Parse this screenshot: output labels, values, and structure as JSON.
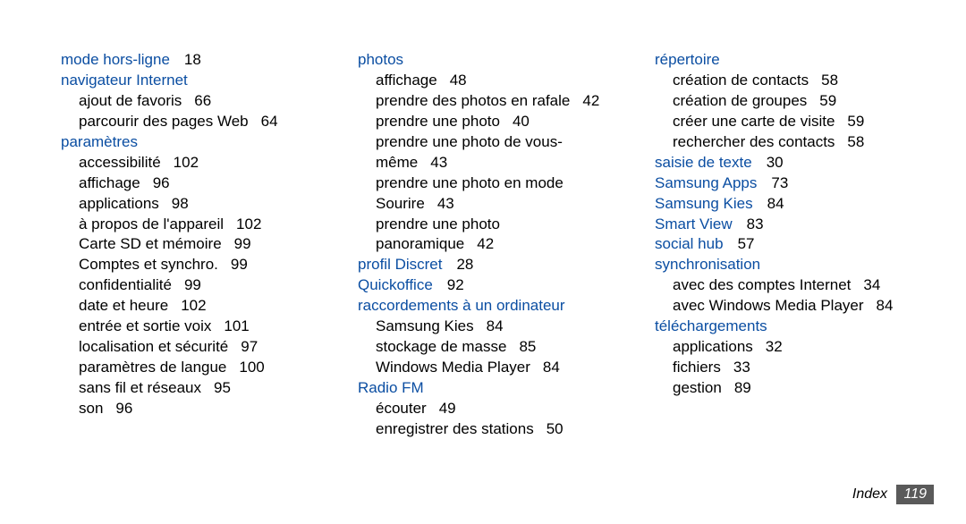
{
  "columns": [
    [
      {
        "heading": "mode hors-ligne",
        "page": "18"
      },
      {
        "heading": "navigateur Internet",
        "subs": [
          {
            "label": "ajout de favoris",
            "page": "66"
          },
          {
            "label": "parcourir des pages Web",
            "page": "64"
          }
        ]
      },
      {
        "heading": "paramètres",
        "subs": [
          {
            "label": "accessibilité",
            "page": "102"
          },
          {
            "label": "affichage",
            "page": "96"
          },
          {
            "label": "applications",
            "page": "98"
          },
          {
            "label": "à propos de l'appareil",
            "page": "102"
          },
          {
            "label": "Carte SD et mémoire",
            "page": "99"
          },
          {
            "label": "Comptes et synchro.",
            "page": "99"
          },
          {
            "label": "confidentialité",
            "page": "99"
          },
          {
            "label": "date et heure",
            "page": "102"
          },
          {
            "label": "entrée et sortie voix",
            "page": "101"
          },
          {
            "label": "localisation et sécurité",
            "page": "97"
          },
          {
            "label": "paramètres de langue",
            "page": "100"
          },
          {
            "label": "sans fil et réseaux",
            "page": "95"
          },
          {
            "label": "son",
            "page": "96"
          }
        ]
      }
    ],
    [
      {
        "heading": "photos",
        "subs": [
          {
            "label": "affichage",
            "page": "48"
          },
          {
            "label": "prendre des photos en rafale",
            "page": "42"
          },
          {
            "label": "prendre une photo",
            "page": "40"
          },
          {
            "label": "prendre une photo de vous-même",
            "page": "43",
            "wrap": true
          },
          {
            "label": "prendre une photo en mode Sourire",
            "page": "43",
            "wrap": true
          },
          {
            "label": "prendre une photo panoramique",
            "page": "42",
            "wrap": true
          }
        ]
      },
      {
        "heading": "profil Discret",
        "page": "28"
      },
      {
        "heading": "Quickoffice",
        "page": "92"
      },
      {
        "heading": "raccordements à un ordinateur",
        "subs": [
          {
            "label": "Samsung Kies",
            "page": "84"
          },
          {
            "label": "stockage de masse",
            "page": "85"
          },
          {
            "label": "Windows Media Player",
            "page": "84"
          }
        ]
      },
      {
        "heading": "Radio FM",
        "subs": [
          {
            "label": "écouter",
            "page": "49"
          },
          {
            "label": "enregistrer des stations",
            "page": "50"
          }
        ]
      }
    ],
    [
      {
        "heading": "répertoire",
        "subs": [
          {
            "label": "création de contacts",
            "page": "58"
          },
          {
            "label": "création de groupes",
            "page": "59"
          },
          {
            "label": "créer une carte de visite",
            "page": "59"
          },
          {
            "label": "rechercher des contacts",
            "page": "58"
          }
        ]
      },
      {
        "heading": "saisie de texte",
        "page": "30"
      },
      {
        "heading": "Samsung Apps",
        "page": "73"
      },
      {
        "heading": "Samsung Kies",
        "page": "84"
      },
      {
        "heading": "Smart View",
        "page": "83"
      },
      {
        "heading": "social hub",
        "page": "57"
      },
      {
        "heading": "synchronisation",
        "subs": [
          {
            "label": "avec des comptes Internet",
            "page": "34"
          },
          {
            "label": "avec Windows Media Player",
            "page": "84"
          }
        ]
      },
      {
        "heading": "téléchargements",
        "subs": [
          {
            "label": "applications",
            "page": "32"
          },
          {
            "label": "fichiers",
            "page": "33"
          },
          {
            "label": "gestion",
            "page": "89"
          }
        ]
      }
    ]
  ],
  "footer": {
    "label": "Index",
    "page": "119"
  },
  "style": {
    "heading_color": "#0b4ea2",
    "text_color": "#000000",
    "badge_bg": "#5a5a5a",
    "badge_fg": "#ffffff"
  }
}
